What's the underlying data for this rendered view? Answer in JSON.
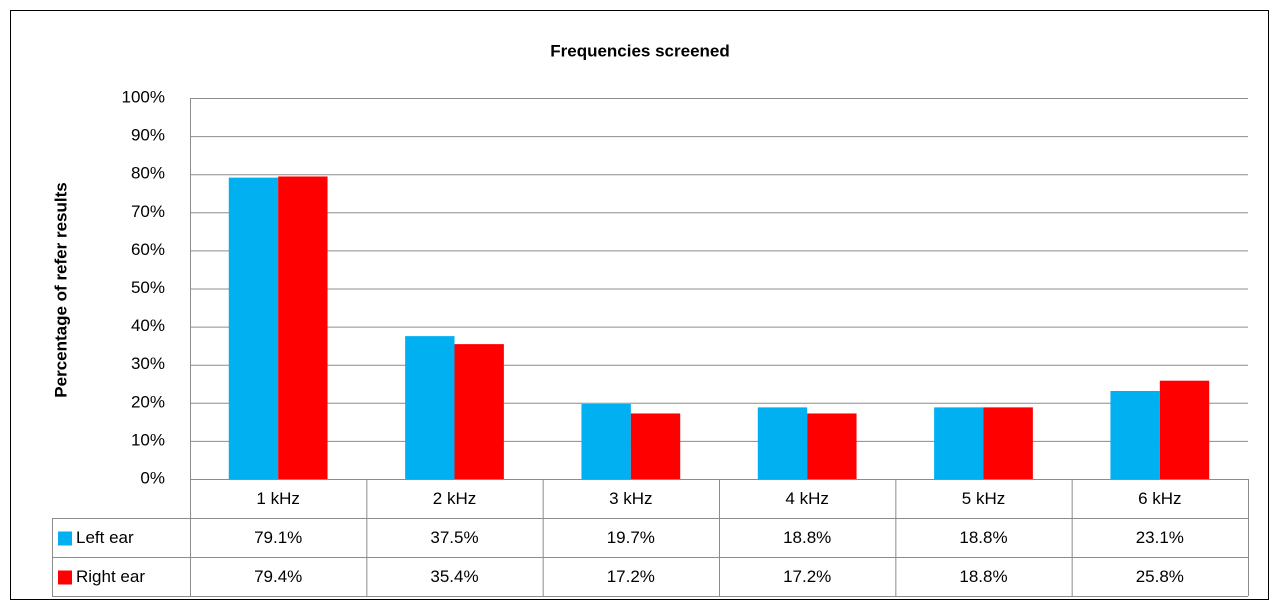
{
  "chart_data": {
    "type": "bar",
    "title": "Frequencies screened",
    "y_label": "Percentage of refer results",
    "categories": [
      "1 kHz",
      "2 kHz",
      "3 kHz",
      "4 kHz",
      "5 kHz",
      "6 kHz"
    ],
    "series": [
      {
        "name": "Left ear",
        "color": "#00b0f0",
        "values": [
          79.1,
          37.5,
          19.7,
          18.8,
          18.8,
          23.1
        ],
        "value_labels": [
          "79.1%",
          "37.5%",
          "19.7%",
          "18.8%",
          "18.8%",
          "23.1%"
        ]
      },
      {
        "name": "Right ear",
        "color": "#ff0000",
        "values": [
          79.4,
          35.4,
          17.2,
          17.2,
          18.8,
          25.8
        ],
        "value_labels": [
          "79.4%",
          "35.4%",
          "17.2%",
          "17.2%",
          "18.8%",
          "25.8%"
        ]
      }
    ],
    "ylim": [
      0,
      100
    ],
    "yticks": [
      {
        "value": 0,
        "label": "0%"
      },
      {
        "value": 10,
        "label": "10%"
      },
      {
        "value": 20,
        "label": "20%"
      },
      {
        "value": 30,
        "label": "30%"
      },
      {
        "value": 40,
        "label": "40%"
      },
      {
        "value": 50,
        "label": "50%"
      },
      {
        "value": 60,
        "label": "60%"
      },
      {
        "value": 70,
        "label": "70%"
      },
      {
        "value": 80,
        "label": "80%"
      },
      {
        "value": 90,
        "label": "90%"
      },
      {
        "value": 100,
        "label": "100%"
      }
    ],
    "grid": true,
    "data_table": true
  }
}
